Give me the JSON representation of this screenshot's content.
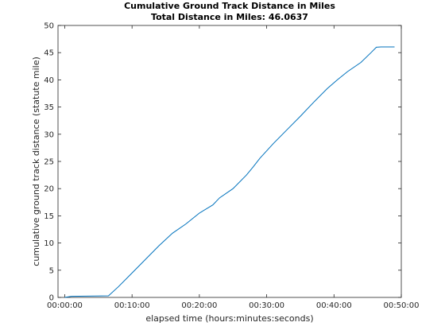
{
  "chart_data": {
    "type": "line",
    "title": "Cumulative Ground Track Distance in Miles",
    "subtitle": "Total Distance in Miles: 46.0637",
    "xlabel": "elapsed time  (hours:minutes:seconds)",
    "ylabel": "cumulative ground track distance (statute mile)",
    "x_unit": "minutes",
    "xlim": [
      -1,
      50
    ],
    "ylim": [
      0,
      50
    ],
    "xticks": [
      {
        "value": 0,
        "label": "00:00:00"
      },
      {
        "value": 10,
        "label": "00:10:00"
      },
      {
        "value": 20,
        "label": "00:20:00"
      },
      {
        "value": 30,
        "label": "00:30:00"
      },
      {
        "value": 40,
        "label": "00:40:00"
      },
      {
        "value": 50,
        "label": "00:50:00"
      }
    ],
    "yticks": [
      0,
      5,
      10,
      15,
      20,
      25,
      30,
      35,
      40,
      45,
      50
    ],
    "grid": false,
    "line_color": "#0072BD",
    "series": [
      {
        "x": [
          0,
          1,
          6.5,
          8,
          10,
          12,
          14,
          16,
          18,
          19.5,
          20,
          22,
          23,
          25,
          27,
          28,
          29,
          31,
          33,
          35,
          37,
          39,
          40.5,
          42,
          44,
          45.5,
          46.3,
          47,
          48,
          49
        ],
        "y": [
          0,
          0.2,
          0.3,
          2,
          4.5,
          7,
          9.5,
          11.8,
          13.5,
          15,
          15.5,
          17,
          18.3,
          20,
          22.5,
          24,
          25.6,
          28.3,
          30.8,
          33.3,
          35.9,
          38.4,
          40,
          41.5,
          43.2,
          45,
          46,
          46.06,
          46.06,
          46.06
        ]
      }
    ]
  }
}
